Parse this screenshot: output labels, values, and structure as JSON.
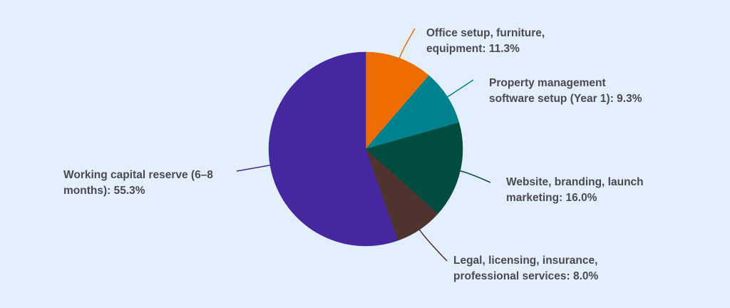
{
  "colors": {
    "background": "#e3effd",
    "label_text": "#4a4a50"
  },
  "chart_data": {
    "type": "pie",
    "title": "",
    "start_angle_deg": 0,
    "direction": "clockwise",
    "slices": [
      {
        "label": "Office setup, furniture, equipment",
        "value": 11.3,
        "display": "Office setup, furniture,\nequipment: 11.3%",
        "color": "#ef6c00"
      },
      {
        "label": "Property management software setup (Year 1)",
        "value": 9.3,
        "display": "Property management\nsoftware setup (Year 1): 9.3%",
        "color": "#00838f"
      },
      {
        "label": "Website, branding, launch marketing",
        "value": 16.0,
        "display": "Website, branding, launch\nmarketing: 16.0%",
        "color": "#004d40"
      },
      {
        "label": "Legal, licensing, insurance, professional services",
        "value": 8.0,
        "display": "Legal, licensing, insurance,\nprofessional services: 8.0%",
        "color": "#4e342e"
      },
      {
        "label": "Working capital reserve (6–8 months)",
        "value": 55.3,
        "display": "Working capital reserve (6–8\nmonths): 55.3%",
        "color": "#4527a0"
      }
    ],
    "units": "%",
    "legend": "none (direct labels with leader lines)"
  }
}
